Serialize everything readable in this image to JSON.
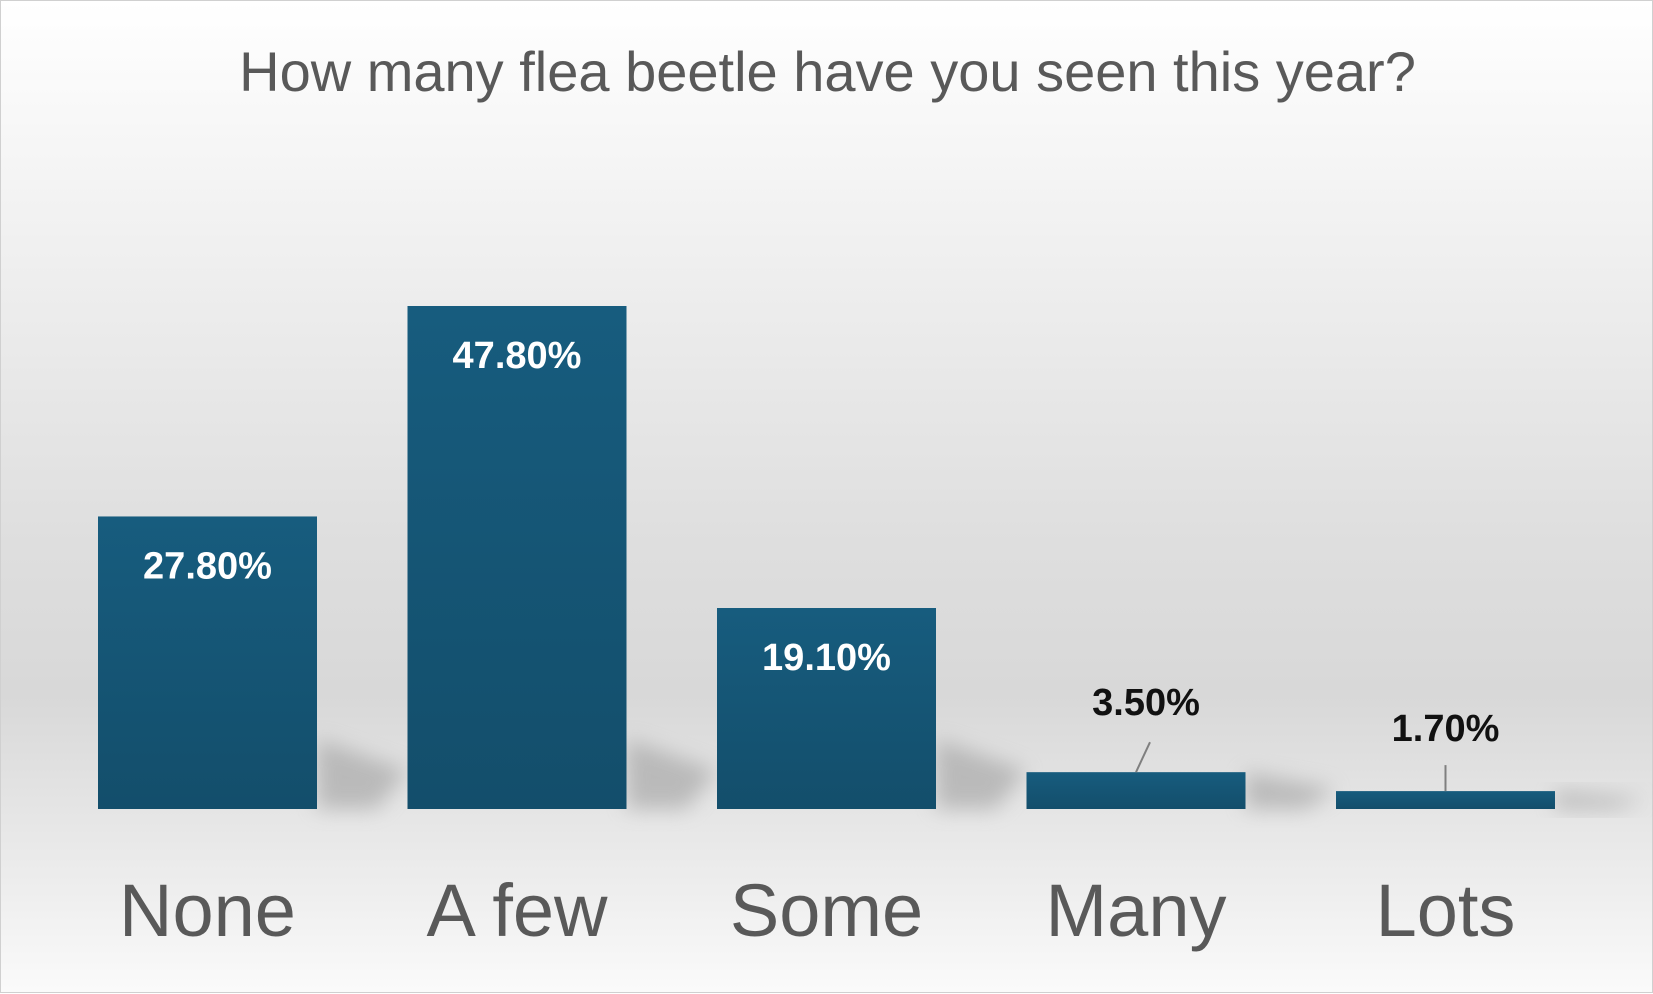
{
  "chart_data": {
    "type": "bar",
    "title": "How many flea beetle have you seen this year?",
    "categories": [
      "None",
      "A few",
      "Some",
      "Many",
      "Lots"
    ],
    "values": [
      27.8,
      47.8,
      19.1,
      3.5,
      1.7
    ],
    "data_labels": [
      "27.80%",
      "47.80%",
      "19.10%",
      "3.50%",
      "1.70%"
    ],
    "ylim": [
      0,
      50
    ],
    "grid": false,
    "legend": "none",
    "bar_color": "#175c7e",
    "bar_color_dark": "#134e6b"
  }
}
